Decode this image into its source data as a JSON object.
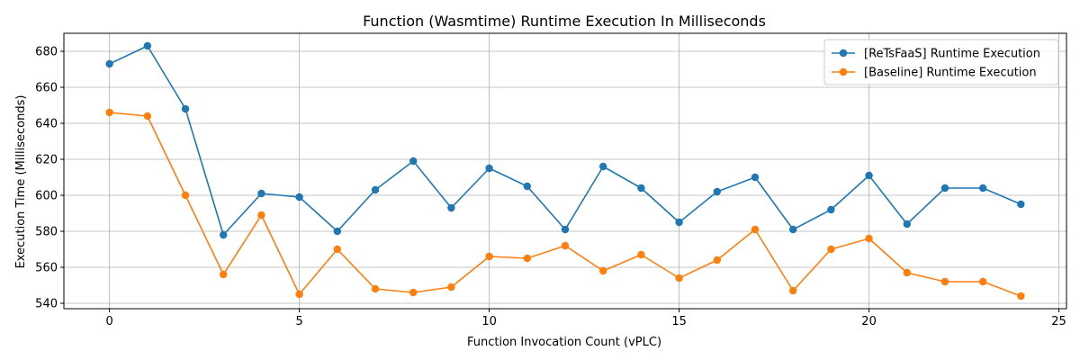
{
  "chart_data": {
    "type": "line",
    "title": "Function (Wasmtime) Runtime Execution In Milliseconds",
    "xlabel": "Function Invocation Count (vPLC)",
    "ylabel": "Execution Time (Milliseconds)",
    "xlim": [
      -1.2,
      25.2
    ],
    "ylim": [
      537,
      690
    ],
    "xticks": [
      0,
      5,
      10,
      15,
      20,
      25
    ],
    "yticks": [
      540,
      560,
      580,
      600,
      620,
      640,
      660,
      680
    ],
    "grid": true,
    "legend_position": "top-right",
    "x": [
      0,
      1,
      2,
      3,
      4,
      5,
      6,
      7,
      8,
      9,
      10,
      11,
      12,
      13,
      14,
      15,
      16,
      17,
      18,
      19,
      20,
      21,
      22,
      23,
      24
    ],
    "series": [
      {
        "name": "[ReTsFaaS] Runtime Execution",
        "color": "#1f77b4",
        "values": [
          673,
          683,
          648,
          578,
          601,
          599,
          580,
          603,
          619,
          593,
          615,
          605,
          581,
          616,
          604,
          585,
          602,
          610,
          581,
          592,
          611,
          584,
          604,
          604,
          595
        ]
      },
      {
        "name": "[Baseline] Runtime Execution",
        "color": "#ff7f0e",
        "values": [
          646,
          644,
          600,
          556,
          589,
          545,
          570,
          548,
          546,
          549,
          566,
          565,
          572,
          558,
          567,
          554,
          564,
          581,
          547,
          570,
          576,
          557,
          552,
          552,
          544
        ]
      }
    ]
  }
}
